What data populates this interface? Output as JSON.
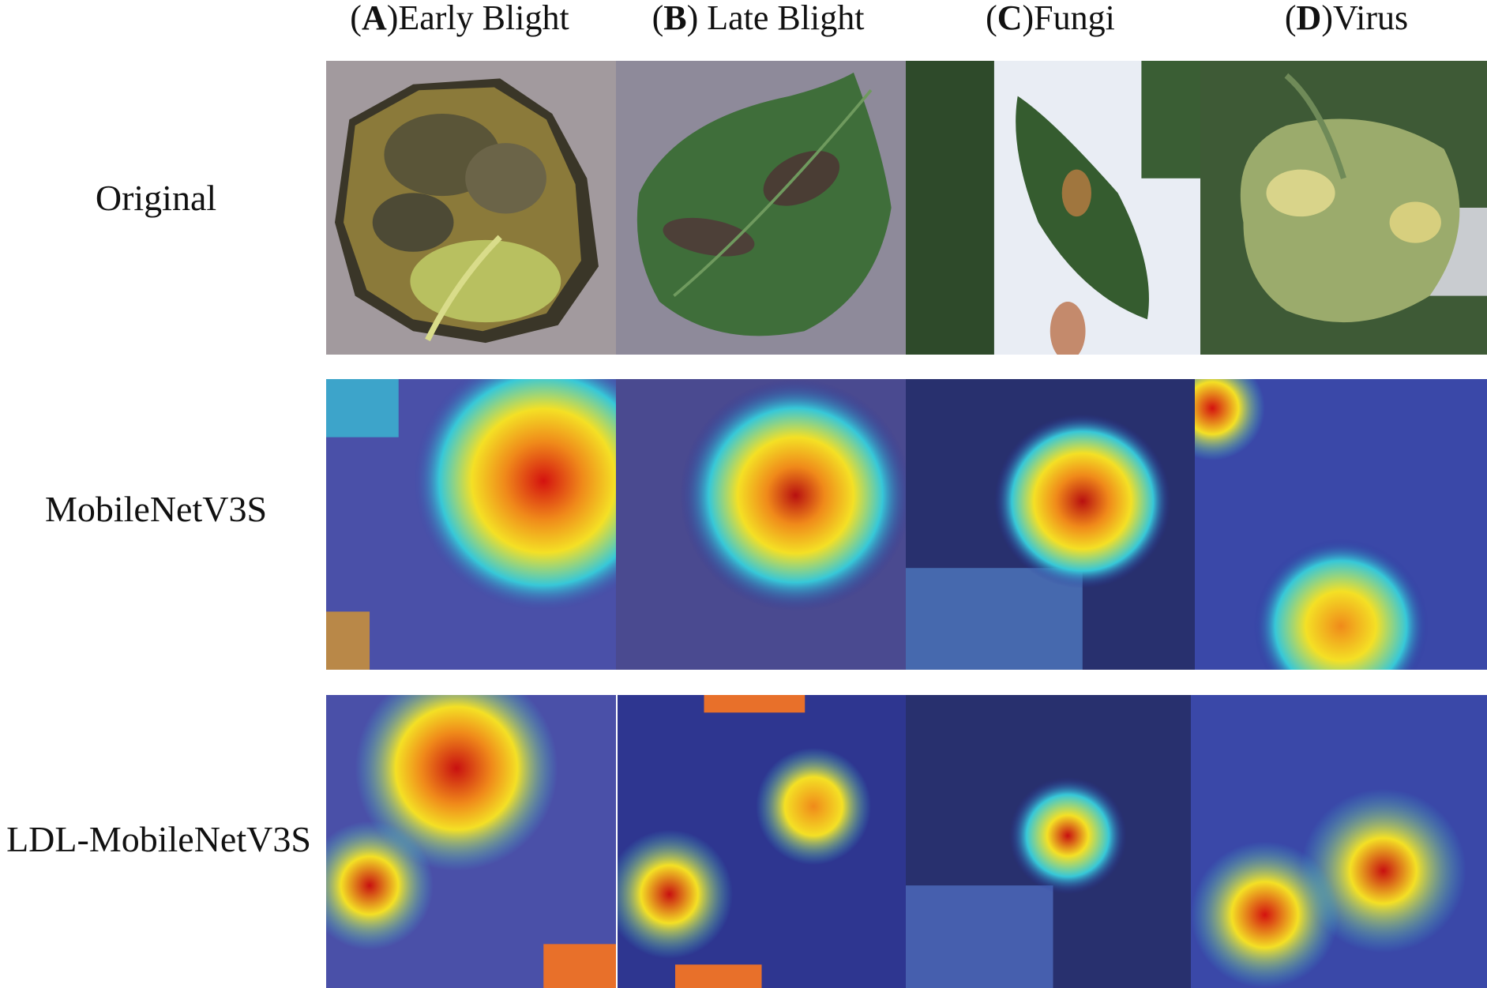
{
  "columns": [
    {
      "letter": "A",
      "label": "Early Blight",
      "suffix": ")Early Blight"
    },
    {
      "letter": "B",
      "label": "Late Blight",
      "suffix": ") Late Blight"
    },
    {
      "letter": "C",
      "label": "Fungi",
      "suffix": ")Fungi"
    },
    {
      "letter": "D",
      "label": "Virus",
      "suffix": ")Virus"
    }
  ],
  "rows": [
    {
      "label": "Original"
    },
    {
      "label": "MobileNetV3S"
    },
    {
      "label": "LDL-MobileNetV3S"
    }
  ],
  "colors": {
    "heat_red": "#d4120f",
    "heat_yellow": "#f4e025",
    "heat_cyan": "#37c8d8",
    "heat_blue": "#2a2d9a",
    "leaf_green": "#3f6e3a",
    "leaf_yellow": "#b9b44a"
  }
}
